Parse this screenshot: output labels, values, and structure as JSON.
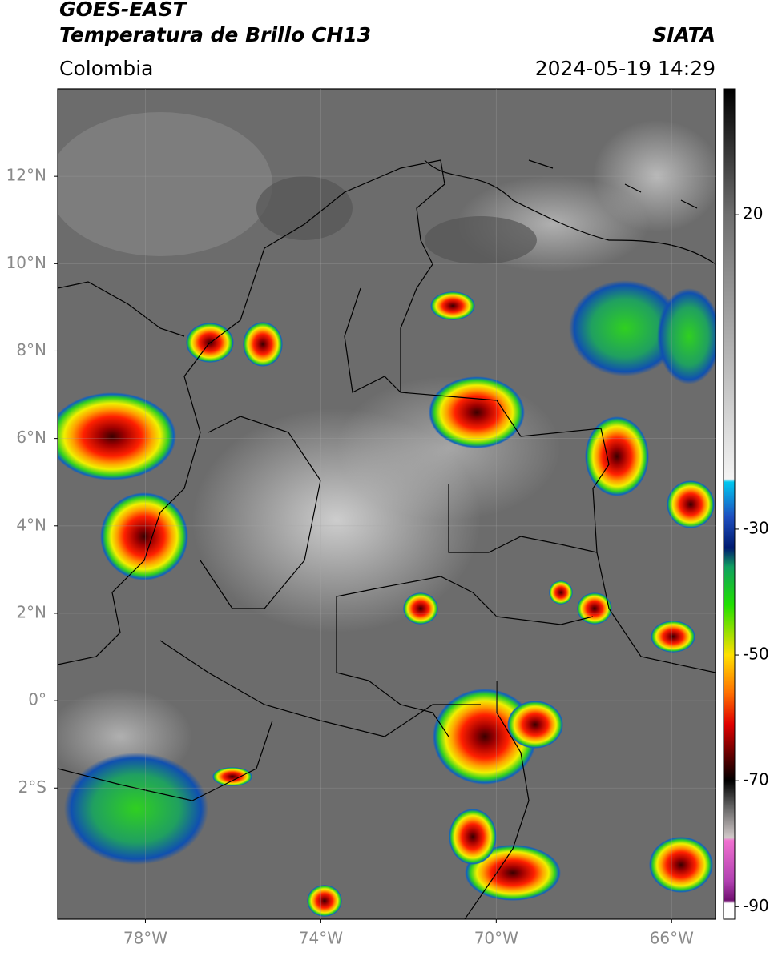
{
  "header": {
    "satellite": "GOES-EAST",
    "product": "Temperatura de Brillo CH13",
    "source": "SIATA",
    "region": "Colombia",
    "timestamp": "2024-05-19 14:29"
  },
  "map": {
    "xlim": [
      -80,
      -65
    ],
    "ylim": [
      -5,
      14
    ],
    "xticks": [
      {
        "value": -78,
        "label": "78°W"
      },
      {
        "value": -74,
        "label": "74°W"
      },
      {
        "value": -70,
        "label": "70°W"
      },
      {
        "value": -66,
        "label": "66°W"
      }
    ],
    "yticks": [
      {
        "value": 12,
        "label": "12°N"
      },
      {
        "value": 10,
        "label": "10°N"
      },
      {
        "value": 8,
        "label": "8°N"
      },
      {
        "value": 6,
        "label": "6°N"
      },
      {
        "value": 4,
        "label": "4°N"
      },
      {
        "value": 2,
        "label": "2°N"
      },
      {
        "value": 0,
        "label": "0°"
      },
      {
        "value": -2,
        "label": "2°S"
      }
    ],
    "grid": true
  },
  "colorbar": {
    "lim": [
      -92,
      40
    ],
    "ticks": [
      20,
      -30,
      -50,
      -70,
      -90
    ],
    "stops": [
      {
        "value": 40,
        "color": "#000000"
      },
      {
        "value": 20,
        "color": "#6e6e6e"
      },
      {
        "value": -22,
        "color": "#f4f4f4"
      },
      {
        "value": -22.5,
        "color": "#00c8f0"
      },
      {
        "value": -28,
        "color": "#1e4fc0"
      },
      {
        "value": -33,
        "color": "#001a70"
      },
      {
        "value": -36,
        "color": "#10a060"
      },
      {
        "value": -42,
        "color": "#20e000"
      },
      {
        "value": -50,
        "color": "#ffe000"
      },
      {
        "value": -56,
        "color": "#ff7000"
      },
      {
        "value": -61,
        "color": "#e00000"
      },
      {
        "value": -66,
        "color": "#600000"
      },
      {
        "value": -70,
        "color": "#000000"
      },
      {
        "value": -74,
        "color": "#606060"
      },
      {
        "value": -79,
        "color": "#d0c8c8"
      },
      {
        "value": -79.5,
        "color": "#f070d0"
      },
      {
        "value": -86,
        "color": "#b040b0"
      },
      {
        "value": -89,
        "color": "#701070"
      },
      {
        "value": -89.5,
        "color": "#ffffff"
      },
      {
        "value": -92,
        "color": "#ffffff"
      }
    ]
  }
}
